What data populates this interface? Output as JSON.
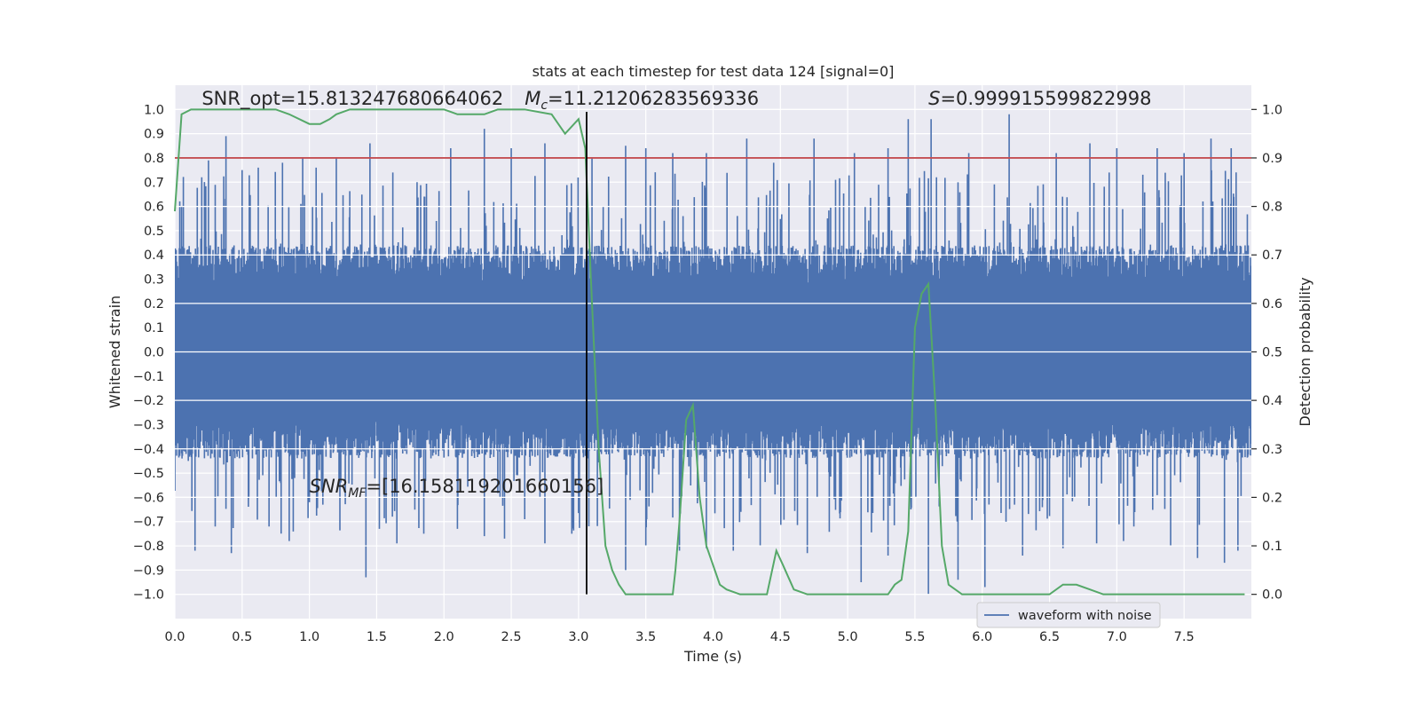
{
  "chart_data": {
    "type": "line",
    "title": "stats at each timestep for test data 124 [signal=0]",
    "xlabel": "Time (s)",
    "ylabel": "Whitened strain",
    "y2label": "Detection probability",
    "xlim": [
      0.0,
      8.0
    ],
    "ylim": [
      -1.1,
      1.1
    ],
    "y2lim": [
      -0.05,
      1.05
    ],
    "x_ticks": [
      0.0,
      0.5,
      1.0,
      1.5,
      2.0,
      2.5,
      3.0,
      3.5,
      4.0,
      4.5,
      5.0,
      5.5,
      6.0,
      6.5,
      7.0,
      7.5
    ],
    "x_tick_labels": [
      "0.0",
      "0.5",
      "1.0",
      "1.5",
      "2.0",
      "2.5",
      "3.0",
      "3.5",
      "4.0",
      "4.5",
      "5.0",
      "5.5",
      "6.0",
      "6.5",
      "7.0",
      "7.5"
    ],
    "y_ticks": [
      1.0,
      0.9,
      0.8,
      0.7,
      0.6,
      0.5,
      0.4,
      0.3,
      0.2,
      0.1,
      0.0,
      -0.1,
      -0.2,
      -0.3,
      -0.4,
      -0.5,
      -0.6,
      -0.7,
      -0.8,
      -0.9,
      -1.0
    ],
    "y_tick_labels": [
      "1.0",
      "0.9",
      "0.8",
      "0.7",
      "0.6",
      "0.5",
      "0.4",
      "0.3",
      "0.2",
      "0.1",
      "0.0",
      "−0.1",
      "−0.2",
      "−0.3",
      "−0.4",
      "−0.5",
      "−0.6",
      "−0.7",
      "−0.8",
      "−0.9",
      "−1.0"
    ],
    "y2_ticks": [
      1.0,
      0.9,
      0.8,
      0.7,
      0.6,
      0.5,
      0.4,
      0.3,
      0.2,
      0.1,
      0.0
    ],
    "y2_tick_labels": [
      "1.0",
      "0.9",
      "0.8",
      "0.7",
      "0.6",
      "0.5",
      "0.4",
      "0.3",
      "0.2",
      "0.1",
      "0.0"
    ],
    "grid": true,
    "legend_position": "lower-right",
    "colors": {
      "waveform": "#4c72b0",
      "probability": "#55a868",
      "threshold": "#c44e52",
      "marker": "#000000",
      "plot_bg": "#eaeaf2",
      "grid": "#ffffff"
    },
    "series": [
      {
        "name": "waveform with noise",
        "axis": "left",
        "description_range": "dense noise band about ±0.4 with spikes up to about ±1.0",
        "peak_times": [
          0.05,
          0.2,
          0.25,
          0.38,
          0.5,
          0.62,
          0.8,
          0.95,
          1.05,
          1.2,
          1.45,
          1.62,
          1.8,
          2.05,
          2.3,
          2.5,
          2.75,
          3.1,
          3.35,
          3.5,
          3.7,
          3.95,
          4.25,
          4.45,
          4.75,
          5.05,
          5.3,
          5.45,
          5.62,
          5.9,
          6.2,
          6.55,
          6.8,
          7.0,
          7.3,
          7.5,
          7.7,
          7.85
        ],
        "peak_values": [
          0.6,
          0.72,
          0.79,
          0.89,
          0.75,
          0.76,
          0.78,
          0.8,
          0.76,
          0.8,
          0.86,
          0.74,
          0.7,
          0.84,
          0.92,
          0.84,
          0.86,
          0.8,
          0.85,
          0.84,
          0.82,
          0.82,
          0.88,
          0.78,
          0.88,
          0.82,
          0.84,
          0.96,
          0.96,
          0.82,
          0.98,
          0.82,
          0.86,
          0.84,
          0.84,
          0.82,
          0.88,
          0.84
        ],
        "trough_times": [
          0.1,
          0.15,
          0.3,
          0.42,
          0.55,
          0.7,
          0.85,
          1.0,
          1.1,
          1.42,
          1.65,
          1.85,
          2.1,
          2.3,
          2.45,
          2.6,
          2.75,
          2.95,
          3.35,
          3.5,
          3.75,
          3.95,
          4.15,
          4.35,
          4.7,
          5.1,
          5.3,
          5.6,
          5.82,
          6.02,
          6.3,
          6.6,
          6.85,
          7.05,
          7.4,
          7.6,
          7.8,
          7.9
        ],
        "trough_values": [
          -0.45,
          -0.82,
          -0.72,
          -0.83,
          -0.6,
          -0.72,
          -0.78,
          -0.62,
          -0.63,
          -0.93,
          -0.79,
          -0.75,
          -0.73,
          -0.76,
          -0.77,
          -0.69,
          -0.79,
          -0.75,
          -0.9,
          -0.8,
          -0.82,
          -0.81,
          -0.82,
          -0.8,
          -0.83,
          -0.95,
          -0.84,
          -1.0,
          -0.94,
          -0.97,
          -0.84,
          -0.81,
          -0.79,
          -0.78,
          -0.8,
          -0.85,
          -0.87,
          -0.82
        ]
      },
      {
        "name": "",
        "axis": "right",
        "x": [
          0.0,
          0.05,
          0.12,
          0.3,
          0.5,
          0.75,
          0.85,
          1.0,
          1.08,
          1.15,
          1.2,
          1.3,
          1.4,
          1.5,
          1.7,
          2.0,
          2.1,
          2.2,
          2.3,
          2.4,
          2.6,
          2.8,
          2.9,
          3.0,
          3.05,
          3.1,
          3.15,
          3.2,
          3.25,
          3.3,
          3.35,
          3.4,
          3.45,
          3.5,
          3.55,
          3.6,
          3.65,
          3.7,
          3.72,
          3.75,
          3.8,
          3.85,
          3.9,
          3.95,
          4.05,
          4.1,
          4.2,
          4.3,
          4.4,
          4.47,
          4.52,
          4.6,
          4.7,
          4.8,
          4.9,
          5.0,
          5.1,
          5.2,
          5.3,
          5.35,
          5.4,
          5.45,
          5.5,
          5.55,
          5.6,
          5.65,
          5.7,
          5.75,
          5.85,
          6.0,
          6.2,
          6.4,
          6.5,
          6.6,
          6.7,
          6.8,
          6.9,
          7.0,
          7.1,
          7.3,
          7.5,
          7.7,
          7.9,
          7.95
        ],
        "y": [
          0.79,
          0.99,
          1.0,
          1.0,
          1.0,
          1.0,
          0.99,
          0.97,
          0.97,
          0.98,
          0.99,
          1.0,
          1.0,
          1.0,
          1.0,
          1.0,
          0.99,
          0.99,
          0.99,
          1.0,
          1.0,
          0.99,
          0.95,
          0.98,
          0.92,
          0.6,
          0.3,
          0.1,
          0.05,
          0.02,
          0.0,
          0.0,
          0.0,
          0.0,
          0.0,
          0.0,
          0.0,
          0.0,
          0.05,
          0.15,
          0.36,
          0.39,
          0.2,
          0.1,
          0.02,
          0.01,
          0.0,
          0.0,
          0.0,
          0.09,
          0.06,
          0.01,
          0.0,
          0.0,
          0.0,
          0.0,
          0.0,
          0.0,
          0.0,
          0.02,
          0.03,
          0.13,
          0.55,
          0.62,
          0.64,
          0.4,
          0.1,
          0.02,
          0.0,
          0.0,
          0.0,
          0.0,
          0.0,
          0.02,
          0.02,
          0.01,
          0.0,
          0.0,
          0.0,
          0.0,
          0.0,
          0.0,
          0.0,
          0.0
        ]
      },
      {
        "name": "",
        "axis": "right",
        "type": "hline",
        "y": 0.9
      },
      {
        "name": "",
        "type": "vline",
        "x": 3.06,
        "ymin_left": -1.0,
        "ymax_left": 0.99
      }
    ],
    "annotations": [
      {
        "name": "snr-opt",
        "text": "SNR_opt=15.813247680664062",
        "x": 0.2,
        "y": 1.02
      },
      {
        "name": "chirp-mass",
        "text_italic": "M",
        "text_sub": "c",
        "text": "=11.21206283569336",
        "x": 2.6,
        "y": 1.02
      },
      {
        "name": "s-value",
        "text_italic": "S",
        "text": "=0.999915599822998",
        "x": 5.6,
        "y": 1.02
      },
      {
        "name": "snr-mf",
        "text_italic": "SNR",
        "text_sub": "MF",
        "text": "=[16.158119201660156]",
        "x": 1.0,
        "y": -0.58
      }
    ]
  }
}
